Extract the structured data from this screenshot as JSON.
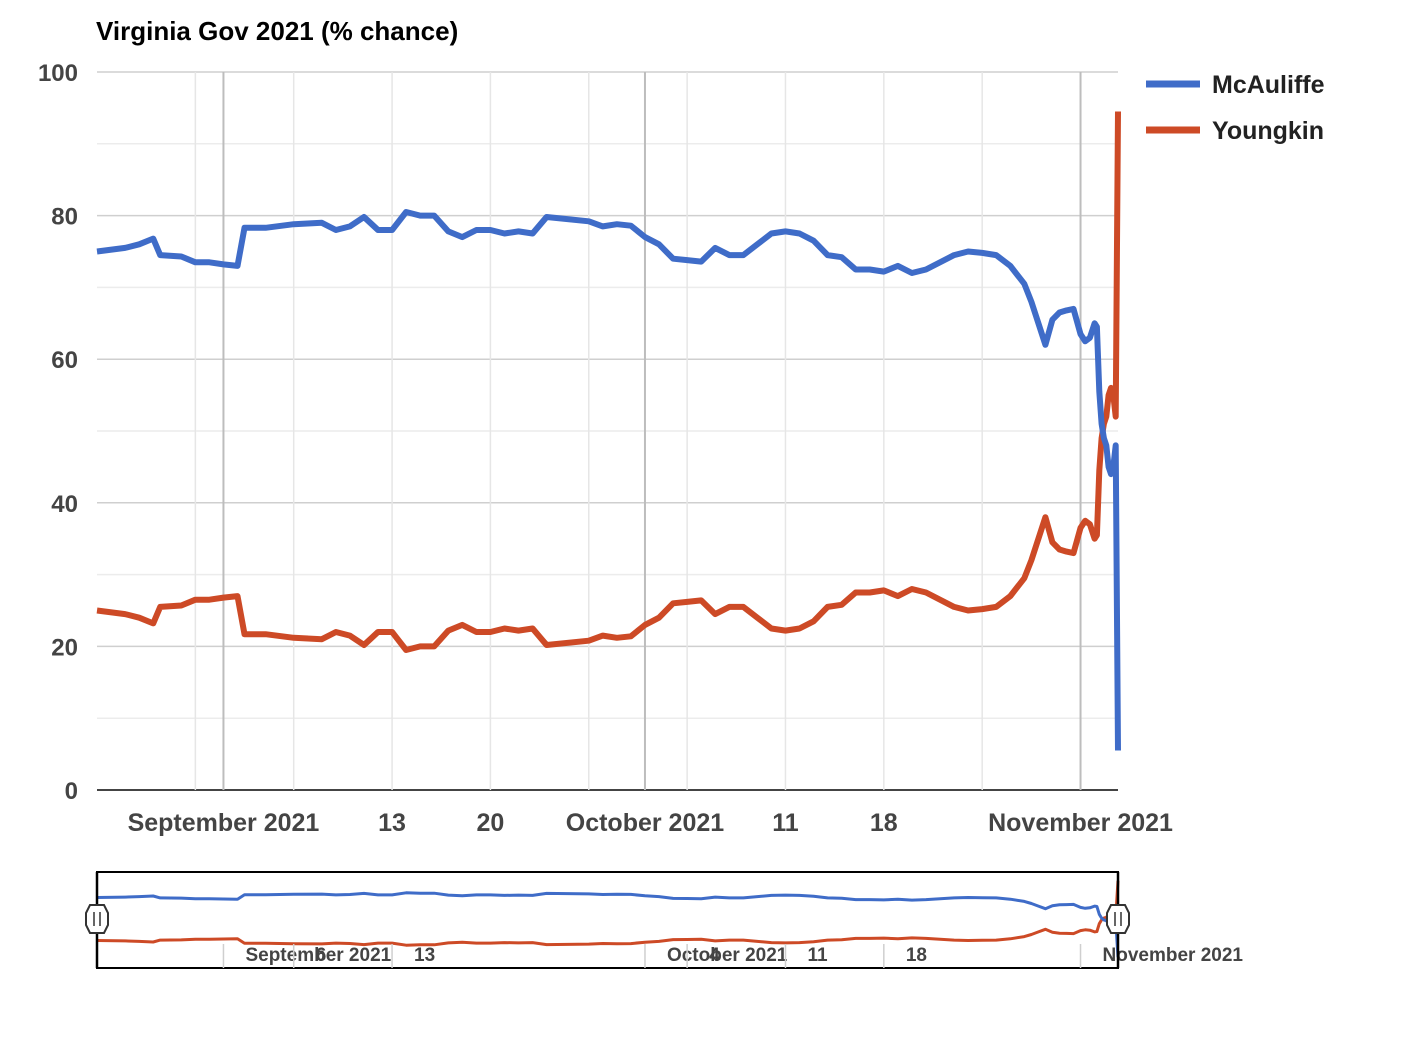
{
  "chart_data": {
    "type": "line",
    "title": "Virginia Gov 2021 (% chance)",
    "xlabel": "",
    "ylabel": "",
    "ylim": [
      0,
      100
    ],
    "xlim": [
      "2021-08-23",
      "2021-11-03"
    ],
    "yticks": [
      0,
      20,
      40,
      60,
      80,
      100
    ],
    "grid": true,
    "legend_position": "top-right",
    "xticks": [
      {
        "date": "2021-09-01",
        "label": "September 2021",
        "major": true
      },
      {
        "date": "2021-09-13",
        "label": "13",
        "major": false
      },
      {
        "date": "2021-09-20",
        "label": "20",
        "major": false
      },
      {
        "date": "2021-10-01",
        "label": "October 2021",
        "major": true
      },
      {
        "date": "2021-10-11",
        "label": "11",
        "major": false
      },
      {
        "date": "2021-10-18",
        "label": "18",
        "major": false
      },
      {
        "date": "2021-11-01",
        "label": "November 2021",
        "major": true
      }
    ],
    "series": [
      {
        "name": "McAuliffe",
        "color": "#3f6cc8",
        "points": [
          [
            "2021-08-23",
            75
          ],
          [
            "2021-08-25",
            75.5
          ],
          [
            "2021-08-26",
            76
          ],
          [
            "2021-08-27",
            76.8
          ],
          [
            "2021-08-27T12:00",
            74.5
          ],
          [
            "2021-08-29",
            74.3
          ],
          [
            "2021-08-30",
            73.5
          ],
          [
            "2021-08-31",
            73.5
          ],
          [
            "2021-09-01",
            73.2
          ],
          [
            "2021-09-02",
            73
          ],
          [
            "2021-09-02T12:00",
            78.3
          ],
          [
            "2021-09-04",
            78.3
          ],
          [
            "2021-09-06",
            78.8
          ],
          [
            "2021-09-08",
            79
          ],
          [
            "2021-09-09",
            78
          ],
          [
            "2021-09-10",
            78.5
          ],
          [
            "2021-09-11",
            79.8
          ],
          [
            "2021-09-12",
            78
          ],
          [
            "2021-09-13",
            78
          ],
          [
            "2021-09-14",
            80.5
          ],
          [
            "2021-09-15",
            80
          ],
          [
            "2021-09-16",
            80
          ],
          [
            "2021-09-17",
            77.8
          ],
          [
            "2021-09-18",
            77
          ],
          [
            "2021-09-19",
            78
          ],
          [
            "2021-09-20",
            78
          ],
          [
            "2021-09-21",
            77.5
          ],
          [
            "2021-09-22",
            77.8
          ],
          [
            "2021-09-23",
            77.5
          ],
          [
            "2021-09-24",
            79.8
          ],
          [
            "2021-09-27",
            79.2
          ],
          [
            "2021-09-28",
            78.5
          ],
          [
            "2021-09-29",
            78.8
          ],
          [
            "2021-09-30",
            78.6
          ],
          [
            "2021-10-01",
            77
          ],
          [
            "2021-10-02",
            76
          ],
          [
            "2021-10-03",
            74
          ],
          [
            "2021-10-04",
            73.8
          ],
          [
            "2021-10-05",
            73.6
          ],
          [
            "2021-10-06",
            75.5
          ],
          [
            "2021-10-07",
            74.5
          ],
          [
            "2021-10-08",
            74.5
          ],
          [
            "2021-10-09",
            76
          ],
          [
            "2021-10-10",
            77.5
          ],
          [
            "2021-10-11",
            77.8
          ],
          [
            "2021-10-12",
            77.5
          ],
          [
            "2021-10-13",
            76.5
          ],
          [
            "2021-10-14",
            74.5
          ],
          [
            "2021-10-15",
            74.2
          ],
          [
            "2021-10-16",
            72.5
          ],
          [
            "2021-10-17",
            72.5
          ],
          [
            "2021-10-18",
            72.2
          ],
          [
            "2021-10-19",
            73
          ],
          [
            "2021-10-20",
            72
          ],
          [
            "2021-10-21",
            72.5
          ],
          [
            "2021-10-23",
            74.5
          ],
          [
            "2021-10-24",
            75
          ],
          [
            "2021-10-25",
            74.8
          ],
          [
            "2021-10-26",
            74.5
          ],
          [
            "2021-10-27",
            73
          ],
          [
            "2021-10-28",
            70.5
          ],
          [
            "2021-10-28T12:00",
            68
          ],
          [
            "2021-10-29",
            65
          ],
          [
            "2021-10-29T12:00",
            62
          ],
          [
            "2021-10-30",
            65.5
          ],
          [
            "2021-10-30T12:00",
            66.5
          ],
          [
            "2021-10-31",
            66.8
          ],
          [
            "2021-10-31T12:00",
            67
          ],
          [
            "2021-11-01",
            63.5
          ],
          [
            "2021-11-01T08:00",
            62.5
          ],
          [
            "2021-11-01T16:00",
            63
          ],
          [
            "2021-11-02",
            65
          ],
          [
            "2021-11-02T04:00",
            64.5
          ],
          [
            "2021-11-02T08:00",
            55.5
          ],
          [
            "2021-11-02T12:00",
            51
          ],
          [
            "2021-11-02T16:00",
            49
          ],
          [
            "2021-11-02T20:00",
            48
          ],
          [
            "2021-11-03",
            45
          ],
          [
            "2021-11-03T04:00",
            44
          ],
          [
            "2021-11-03T08:00",
            45
          ],
          [
            "2021-11-03T12:00",
            48
          ],
          [
            "2021-11-03T16:00",
            5.5
          ]
        ]
      },
      {
        "name": "Youngkin",
        "color": "#cd4a26",
        "points": [
          [
            "2021-08-23",
            25
          ],
          [
            "2021-08-25",
            24.5
          ],
          [
            "2021-08-26",
            24
          ],
          [
            "2021-08-27",
            23.2
          ],
          [
            "2021-08-27T12:00",
            25.5
          ],
          [
            "2021-08-29",
            25.7
          ],
          [
            "2021-08-30",
            26.5
          ],
          [
            "2021-08-31",
            26.5
          ],
          [
            "2021-09-01",
            26.8
          ],
          [
            "2021-09-02",
            27
          ],
          [
            "2021-09-02T12:00",
            21.7
          ],
          [
            "2021-09-04",
            21.7
          ],
          [
            "2021-09-06",
            21.2
          ],
          [
            "2021-09-08",
            21
          ],
          [
            "2021-09-09",
            22
          ],
          [
            "2021-09-10",
            21.5
          ],
          [
            "2021-09-11",
            20.2
          ],
          [
            "2021-09-12",
            22
          ],
          [
            "2021-09-13",
            22
          ],
          [
            "2021-09-14",
            19.5
          ],
          [
            "2021-09-15",
            20
          ],
          [
            "2021-09-16",
            20
          ],
          [
            "2021-09-17",
            22.2
          ],
          [
            "2021-09-18",
            23
          ],
          [
            "2021-09-19",
            22
          ],
          [
            "2021-09-20",
            22
          ],
          [
            "2021-09-21",
            22.5
          ],
          [
            "2021-09-22",
            22.2
          ],
          [
            "2021-09-23",
            22.5
          ],
          [
            "2021-09-24",
            20.2
          ],
          [
            "2021-09-27",
            20.8
          ],
          [
            "2021-09-28",
            21.5
          ],
          [
            "2021-09-29",
            21.2
          ],
          [
            "2021-09-30",
            21.4
          ],
          [
            "2021-10-01",
            23
          ],
          [
            "2021-10-02",
            24
          ],
          [
            "2021-10-03",
            26
          ],
          [
            "2021-10-04",
            26.2
          ],
          [
            "2021-10-05",
            26.4
          ],
          [
            "2021-10-06",
            24.5
          ],
          [
            "2021-10-07",
            25.5
          ],
          [
            "2021-10-08",
            25.5
          ],
          [
            "2021-10-09",
            24
          ],
          [
            "2021-10-10",
            22.5
          ],
          [
            "2021-10-11",
            22.2
          ],
          [
            "2021-10-12",
            22.5
          ],
          [
            "2021-10-13",
            23.5
          ],
          [
            "2021-10-14",
            25.5
          ],
          [
            "2021-10-15",
            25.8
          ],
          [
            "2021-10-16",
            27.5
          ],
          [
            "2021-10-17",
            27.5
          ],
          [
            "2021-10-18",
            27.8
          ],
          [
            "2021-10-19",
            27
          ],
          [
            "2021-10-20",
            28
          ],
          [
            "2021-10-21",
            27.5
          ],
          [
            "2021-10-23",
            25.5
          ],
          [
            "2021-10-24",
            25
          ],
          [
            "2021-10-25",
            25.2
          ],
          [
            "2021-10-26",
            25.5
          ],
          [
            "2021-10-27",
            27
          ],
          [
            "2021-10-28",
            29.5
          ],
          [
            "2021-10-28T12:00",
            32
          ],
          [
            "2021-10-29",
            35
          ],
          [
            "2021-10-29T12:00",
            38
          ],
          [
            "2021-10-30",
            34.5
          ],
          [
            "2021-10-30T12:00",
            33.5
          ],
          [
            "2021-10-31",
            33.2
          ],
          [
            "2021-10-31T12:00",
            33
          ],
          [
            "2021-11-01",
            36.5
          ],
          [
            "2021-11-01T08:00",
            37.5
          ],
          [
            "2021-11-01T16:00",
            37
          ],
          [
            "2021-11-02",
            35
          ],
          [
            "2021-11-02T04:00",
            35.5
          ],
          [
            "2021-11-02T08:00",
            44.5
          ],
          [
            "2021-11-02T12:00",
            49
          ],
          [
            "2021-11-02T16:00",
            51
          ],
          [
            "2021-11-02T20:00",
            52
          ],
          [
            "2021-11-03",
            55
          ],
          [
            "2021-11-03T04:00",
            56
          ],
          [
            "2021-11-03T08:00",
            55
          ],
          [
            "2021-11-03T12:00",
            52
          ],
          [
            "2021-11-03T16:00",
            94.5
          ]
        ]
      }
    ],
    "navigator": {
      "xticks": [
        {
          "date": "2021-09-01",
          "label": "September 2021"
        },
        {
          "date": "2021-09-06",
          "label": "6"
        },
        {
          "date": "2021-09-13",
          "label": "13"
        },
        {
          "date": "2021-10-01",
          "label": "October 2021"
        },
        {
          "date": "2021-10-04",
          "label": "4"
        },
        {
          "date": "2021-10-11",
          "label": "11"
        },
        {
          "date": "2021-10-18",
          "label": "18"
        },
        {
          "date": "2021-11-01",
          "label": "November 2021"
        }
      ]
    }
  }
}
